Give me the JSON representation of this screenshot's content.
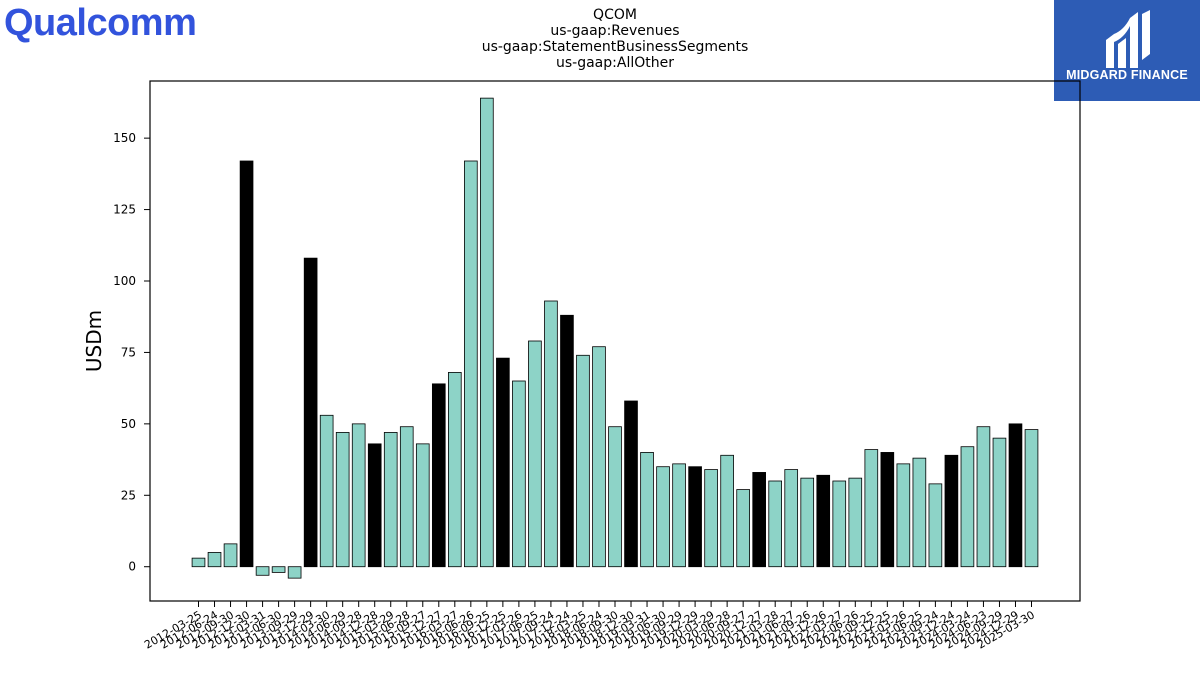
{
  "brand": {
    "logo_text": "Qualcomm"
  },
  "watermark": {
    "label": "MIDGARD FINANCE"
  },
  "colors": {
    "normal_bar": "#8dd3c7",
    "highlight_bar": "#000000",
    "brand_blue": "#3253dc",
    "watermark_bg": "#2d5cb5"
  },
  "chart_data": {
    "type": "bar",
    "title_lines": [
      "QCOM",
      "us-gaap:Revenues",
      "us-gaap:StatementBusinessSegments",
      "us-gaap:AllOther"
    ],
    "xlabel": "",
    "ylabel": "USDm",
    "ylim": [
      -12,
      170
    ],
    "yticks": [
      0,
      25,
      50,
      75,
      100,
      125,
      150
    ],
    "grid": false,
    "categories": [
      "2012-03-25",
      "2012-06-24",
      "2012-09-30",
      "2012-12-30",
      "2013-03-31",
      "2013-06-30",
      "2013-09-29",
      "2013-12-29",
      "2014-03-30",
      "2014-06-29",
      "2014-09-28",
      "2014-12-28",
      "2015-03-29",
      "2015-06-28",
      "2015-09-27",
      "2015-12-27",
      "2016-03-27",
      "2016-06-26",
      "2016-09-25",
      "2016-12-25",
      "2017-03-26",
      "2017-06-25",
      "2017-09-24",
      "2017-12-24",
      "2018-03-25",
      "2018-06-24",
      "2018-09-30",
      "2018-12-30",
      "2019-03-31",
      "2019-06-30",
      "2019-09-29",
      "2019-12-29",
      "2020-03-29",
      "2020-06-28",
      "2020-09-27",
      "2020-12-27",
      "2021-03-28",
      "2021-06-27",
      "2021-09-26",
      "2021-12-26",
      "2022-03-27",
      "2022-06-26",
      "2022-09-25",
      "2022-12-25",
      "2023-03-26",
      "2023-06-25",
      "2023-09-24",
      "2023-12-24",
      "2024-03-24",
      "2024-06-23",
      "2024-09-29",
      "2024-12-29",
      "2025-03-30"
    ],
    "values": [
      3,
      5,
      8,
      142,
      -3,
      -2,
      -4,
      108,
      53,
      47,
      50,
      43,
      47,
      49,
      43,
      64,
      68,
      142,
      164,
      73,
      65,
      79,
      93,
      88,
      74,
      77,
      49,
      58,
      40,
      35,
      36,
      35,
      34,
      39,
      27,
      33,
      30,
      34,
      31,
      32,
      30,
      31,
      41,
      40,
      36,
      38,
      29,
      39,
      42,
      49,
      45,
      50,
      48
    ],
    "highlight": [
      false,
      false,
      false,
      true,
      false,
      false,
      false,
      true,
      false,
      false,
      false,
      true,
      false,
      false,
      false,
      true,
      false,
      false,
      false,
      true,
      false,
      false,
      false,
      true,
      false,
      false,
      false,
      true,
      false,
      false,
      false,
      true,
      false,
      false,
      false,
      true,
      false,
      false,
      false,
      true,
      false,
      false,
      false,
      true,
      false,
      false,
      false,
      true,
      false,
      false,
      false,
      true,
      false
    ]
  }
}
